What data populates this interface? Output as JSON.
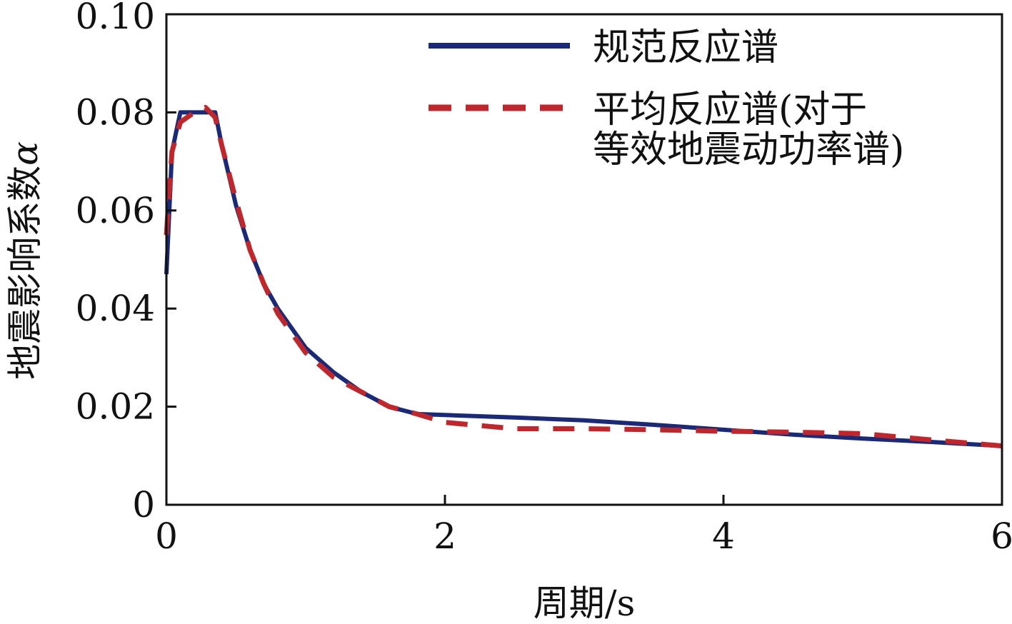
{
  "chart_data": {
    "type": "line",
    "xlabel": "周期/s",
    "ylabel": "地震影响系数",
    "ylabel_symbol": "α",
    "xlim": [
      0,
      6
    ],
    "ylim": [
      0,
      0.1
    ],
    "x_ticks": [
      0,
      2,
      4,
      6
    ],
    "x_tick_labels": [
      "0",
      "2",
      "4",
      "6"
    ],
    "y_ticks": [
      0,
      0.02,
      0.04,
      0.06,
      0.08,
      0.1
    ],
    "y_tick_labels": [
      "0",
      "0.02",
      "0.04",
      "0.06",
      "0.08",
      "0.10"
    ],
    "grid": false,
    "legend_position": "top-right",
    "legend_lines": [
      [
        "规范反应谱"
      ],
      [
        "平均反应谱(对于",
        "等效地震动功率谱)"
      ]
    ],
    "series": [
      {
        "name": "规范反应谱",
        "color": "#1a2a78",
        "style": "solid",
        "x": [
          0,
          0.04,
          0.1,
          0.2,
          0.3,
          0.35,
          0.4,
          0.5,
          0.6,
          0.7,
          0.8,
          1.0,
          1.2,
          1.4,
          1.6,
          1.8,
          2.0,
          2.5,
          3.0,
          3.5,
          4.0,
          4.5,
          5.0,
          5.5,
          6.0
        ],
        "y": [
          0.047,
          0.072,
          0.08,
          0.08,
          0.08,
          0.08,
          0.073,
          0.061,
          0.052,
          0.045,
          0.04,
          0.032,
          0.027,
          0.023,
          0.02,
          0.0185,
          0.0183,
          0.0178,
          0.0172,
          0.0163,
          0.0153,
          0.0143,
          0.0135,
          0.0128,
          0.012
        ]
      },
      {
        "name": "平均反应谱(对于等效地震动功率谱)",
        "color": "#c0272d",
        "style": "dashed",
        "x": [
          0,
          0.04,
          0.1,
          0.2,
          0.28,
          0.35,
          0.4,
          0.5,
          0.6,
          0.7,
          0.8,
          1.0,
          1.2,
          1.4,
          1.6,
          1.8,
          2.0,
          2.5,
          3.0,
          3.5,
          4.0,
          4.5,
          5.0,
          5.5,
          6.0
        ],
        "y": [
          0.055,
          0.072,
          0.078,
          0.08,
          0.081,
          0.079,
          0.073,
          0.062,
          0.052,
          0.045,
          0.039,
          0.031,
          0.026,
          0.023,
          0.02,
          0.0185,
          0.0168,
          0.0155,
          0.0155,
          0.0153,
          0.015,
          0.0148,
          0.0145,
          0.0132,
          0.012
        ]
      }
    ]
  }
}
